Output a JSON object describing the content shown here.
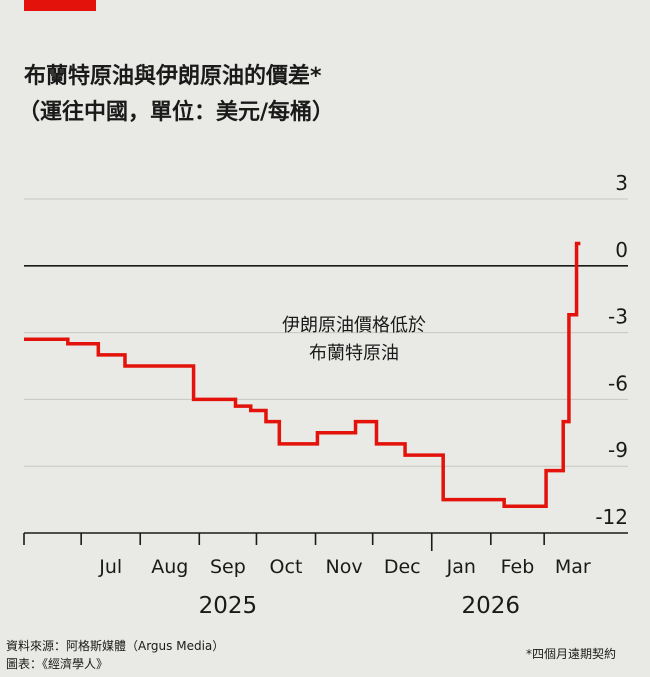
{
  "title": "布蘭特原油與伊朗原油的價差*",
  "subtitle": "（運往中國，單位：美元/每桶）",
  "annotation": {
    "line1": "伊朗原油價格低於",
    "line2": "布蘭特原油"
  },
  "source_line1": "資料來源：阿格斯媒體（Argus Media）",
  "source_line2": "圖表：《經濟學人》",
  "footnote": "*四個月遠期契約",
  "colors": {
    "accent": "#e3120b",
    "line": "#e3120b",
    "grid": "#c7c7c2",
    "zero": "#1a1a1a",
    "background": "#e9e9e5"
  },
  "chart_data": {
    "type": "line",
    "step": true,
    "title": "布蘭特原油與伊朗原油的價差*",
    "ylim": [
      -12,
      3
    ],
    "yticks": [
      "3",
      "0",
      "-3",
      "-6",
      "-9",
      "-12"
    ],
    "ytick_values": [
      3,
      0,
      -3,
      -6,
      -9,
      -12
    ],
    "y_axis_side": "right",
    "grid": true,
    "xlim": [
      "2025-06-01",
      "2026-04-14"
    ],
    "month_labels": [
      "Jul",
      "Aug",
      "Sep",
      "Oct",
      "Nov",
      "Dec",
      "Jan",
      "Feb",
      "Mar"
    ],
    "month_dates": [
      "2025-07-01",
      "2025-08-01",
      "2025-09-01",
      "2025-10-01",
      "2025-11-01",
      "2025-12-01",
      "2026-01-01",
      "2026-02-01",
      "2026-03-01"
    ],
    "year_labels": [
      "2025",
      "2026"
    ],
    "year_label_dates": [
      "2025-09-16",
      "2026-02-01"
    ],
    "series": [
      {
        "x": [
          "2025-06-01",
          "2025-06-17",
          "2025-06-24",
          "2025-07-10",
          "2025-07-24",
          "2025-08-14",
          "2025-08-29",
          "2025-09-20",
          "2025-09-28",
          "2025-10-06",
          "2025-10-13",
          "2025-10-23",
          "2025-11-02",
          "2025-11-22",
          "2025-12-03",
          "2025-12-08",
          "2025-12-18",
          "2026-01-07",
          "2026-01-13",
          "2026-02-01",
          "2026-02-08",
          "2026-02-20",
          "2026-03-02",
          "2026-03-09",
          "2026-03-11",
          "2026-03-14",
          "2026-03-18",
          "2026-03-20"
        ],
        "y": [
          -3.3,
          -3.3,
          -3.5,
          -4.0,
          -4.5,
          -4.5,
          -6.0,
          -6.3,
          -6.5,
          -7.0,
          -8.0,
          -8.0,
          -7.5,
          -7.0,
          -8.0,
          -8.0,
          -8.5,
          -10.5,
          -10.5,
          -10.5,
          -10.8,
          -10.8,
          -9.2,
          -9.2,
          -7.0,
          -2.2,
          1.0,
          1.0
        ]
      }
    ]
  }
}
